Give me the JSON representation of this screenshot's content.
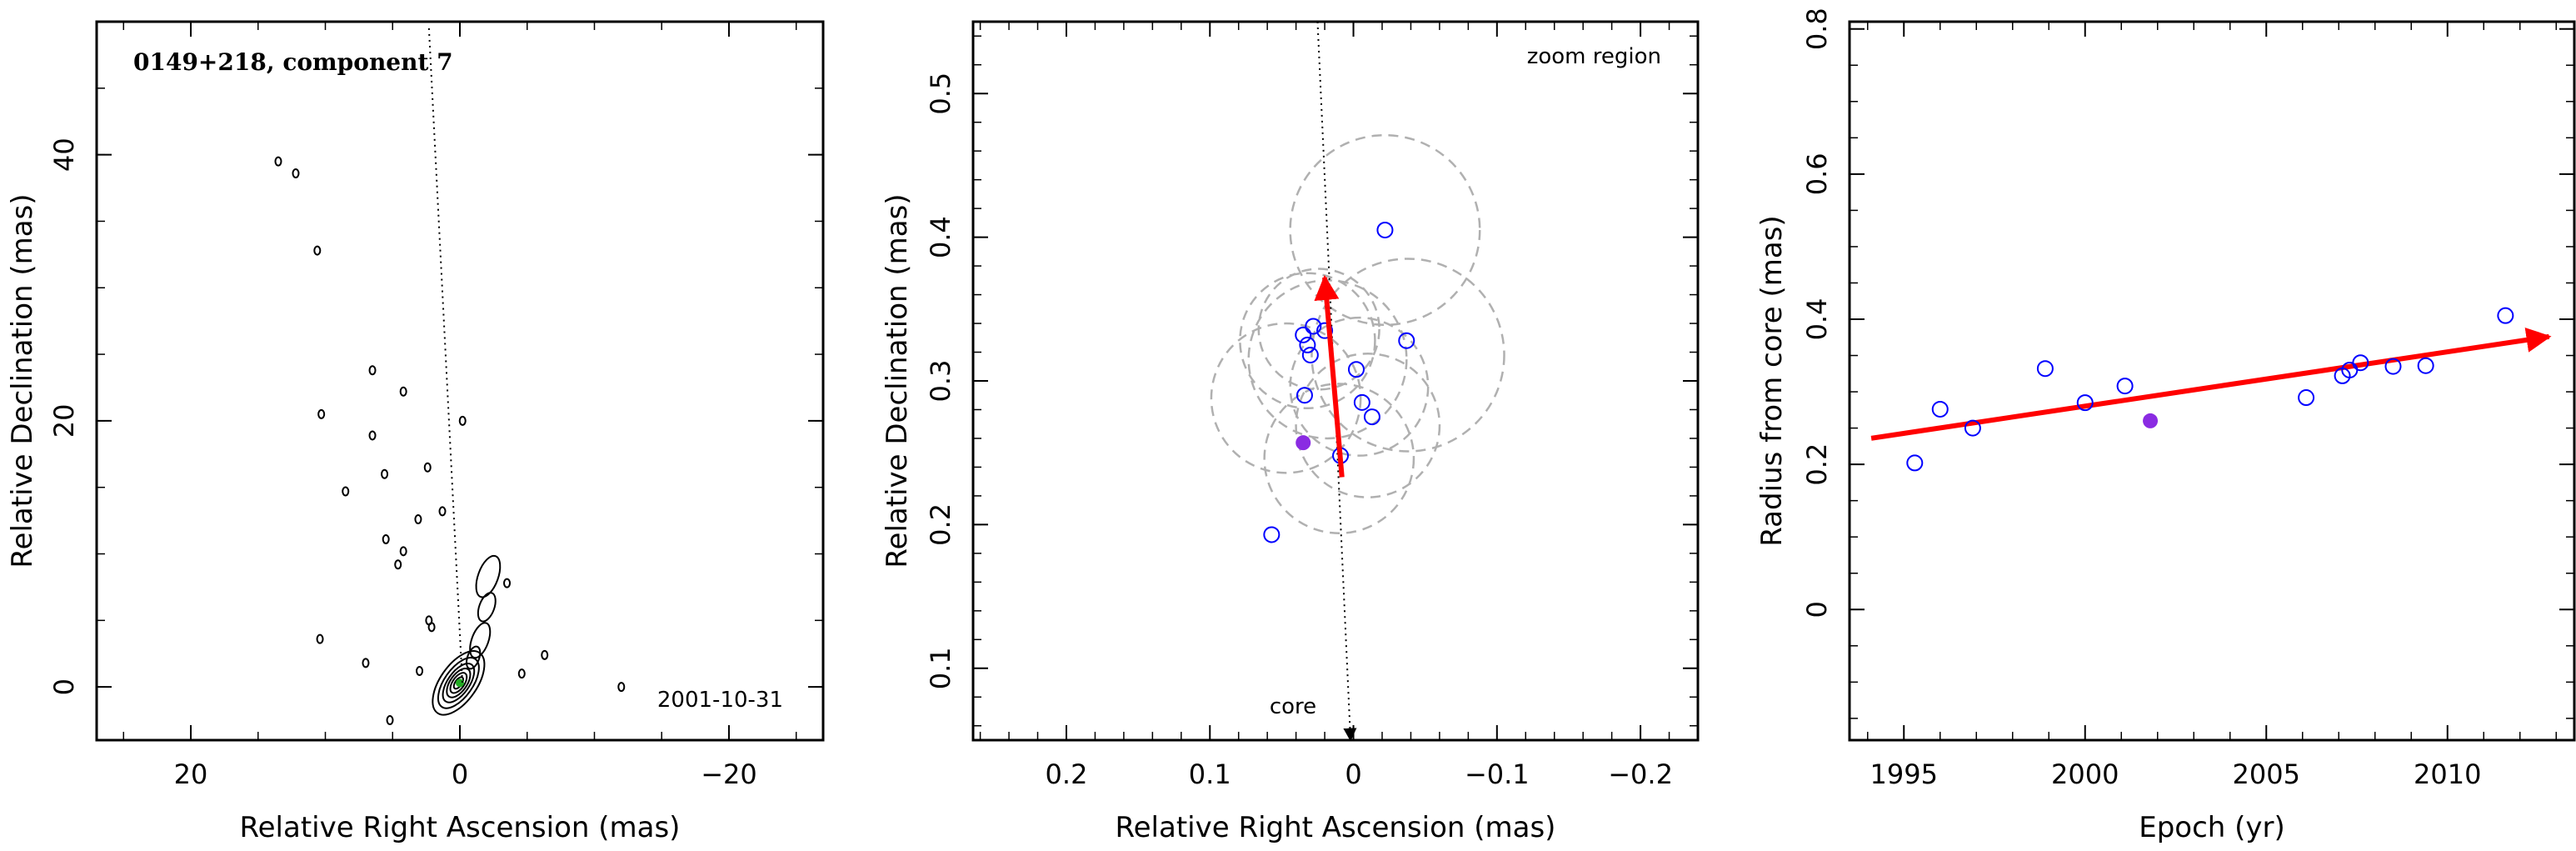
{
  "figure": {
    "panels": 3
  },
  "chart_data": [
    {
      "type": "contour",
      "title": "0149+218, component 7",
      "annotation_date": "2001-10-31",
      "xlabel": "Relative Right Ascension (mas)",
      "ylabel": "Relative Declination (mas)",
      "xlim": [
        27,
        -27
      ],
      "ylim": [
        -4,
        50
      ],
      "xticks": [
        20,
        0,
        -20
      ],
      "xtick_labels": [
        "20",
        "0",
        "−20"
      ],
      "yticks": [
        0,
        20,
        40
      ],
      "ytick_labels": [
        "0",
        "20",
        "40"
      ],
      "jet_direction_line": {
        "from": [
          2.3,
          49.5
        ],
        "to": [
          -0.2,
          0
        ],
        "style": "dotted"
      },
      "component_marker": {
        "x": 0.0,
        "y": 0.3,
        "color": "#22aa22"
      },
      "contour_color": "#000000"
    },
    {
      "type": "scatter",
      "annotation_label": "zoom region",
      "core_label": "core",
      "xlabel": "Relative Right Ascension (mas)",
      "ylabel": "Relative Declination (mas)",
      "xlim": [
        0.265,
        -0.24
      ],
      "ylim": [
        0.05,
        0.55
      ],
      "xticks": [
        0.2,
        0.1,
        0,
        -0.1,
        -0.2
      ],
      "xtick_labels": [
        "0.2",
        "0.1",
        "0",
        "−0.1",
        "−0.2"
      ],
      "yticks": [
        0.1,
        0.2,
        0.3,
        0.4,
        0.5
      ],
      "ytick_labels": [
        "0.1",
        "0.2",
        "0.3",
        "0.4",
        "0.5"
      ],
      "open_points": [
        {
          "x": -0.022,
          "y": 0.405
        },
        {
          "x": 0.028,
          "y": 0.338
        },
        {
          "x": 0.035,
          "y": 0.332
        },
        {
          "x": 0.032,
          "y": 0.325
        },
        {
          "x": 0.02,
          "y": 0.335
        },
        {
          "x": -0.037,
          "y": 0.328
        },
        {
          "x": 0.03,
          "y": 0.318
        },
        {
          "x": 0.034,
          "y": 0.29
        },
        {
          "x": -0.002,
          "y": 0.308
        },
        {
          "x": -0.006,
          "y": 0.285
        },
        {
          "x": -0.013,
          "y": 0.275
        },
        {
          "x": 0.009,
          "y": 0.248
        },
        {
          "x": 0.057,
          "y": 0.193
        }
      ],
      "filled_point": {
        "x": 0.035,
        "y": 0.257
      },
      "circles": [
        {
          "x": -0.022,
          "y": 0.405,
          "r": 0.066
        },
        {
          "x": -0.038,
          "y": 0.318,
          "r": 0.067
        },
        {
          "x": 0.032,
          "y": 0.328,
          "r": 0.047
        },
        {
          "x": 0.024,
          "y": 0.336,
          "r": 0.042
        },
        {
          "x": 0.018,
          "y": 0.315,
          "r": 0.055
        },
        {
          "x": -0.004,
          "y": 0.296,
          "r": 0.048
        },
        {
          "x": 0.047,
          "y": 0.288,
          "r": 0.052
        },
        {
          "x": 0.01,
          "y": 0.246,
          "r": 0.052
        },
        {
          "x": -0.01,
          "y": 0.269,
          "r": 0.05
        }
      ],
      "motion_vector": {
        "from": [
          0.008,
          0.233
        ],
        "to": [
          0.02,
          0.372
        ],
        "color": "#ff0000"
      },
      "jet_direction_line": {
        "from": [
          0.025,
          0.55
        ],
        "to": [
          0.002,
          0.05
        ],
        "style": "dotted"
      },
      "open_color": "#0000ff",
      "filled_color": "#8a2be2",
      "circle_color": "#b0b0b0"
    },
    {
      "type": "scatter",
      "xlabel": "Epoch (yr)",
      "ylabel": "Radius from core (mas)",
      "xlim": [
        1993.5,
        2013.5
      ],
      "ylim": [
        -0.18,
        0.81
      ],
      "xticks": [
        1995,
        2000,
        2005,
        2010
      ],
      "xtick_labels": [
        "1995",
        "2000",
        "2005",
        "2010"
      ],
      "yticks": [
        0,
        0.2,
        0.4,
        0.6,
        0.8
      ],
      "ytick_labels": [
        "0",
        "0.2",
        "0.4",
        "0.6",
        "0.8"
      ],
      "open_points": [
        {
          "x": 1995.3,
          "y": 0.202
        },
        {
          "x": 1996.0,
          "y": 0.276
        },
        {
          "x": 1996.9,
          "y": 0.25
        },
        {
          "x": 1998.9,
          "y": 0.332
        },
        {
          "x": 2000.0,
          "y": 0.285
        },
        {
          "x": 2001.1,
          "y": 0.308
        },
        {
          "x": 2006.1,
          "y": 0.292
        },
        {
          "x": 2007.1,
          "y": 0.322
        },
        {
          "x": 2007.3,
          "y": 0.33
        },
        {
          "x": 2007.6,
          "y": 0.34
        },
        {
          "x": 2008.5,
          "y": 0.335
        },
        {
          "x": 2009.4,
          "y": 0.336
        },
        {
          "x": 2011.6,
          "y": 0.405
        }
      ],
      "filled_point": {
        "x": 2001.8,
        "y": 0.26
      },
      "fit_line": {
        "from": [
          1994.1,
          0.236
        ],
        "to": [
          2012.8,
          0.376
        ],
        "color": "#ff0000"
      },
      "open_color": "#0000ff",
      "filled_color": "#8a2be2"
    }
  ]
}
